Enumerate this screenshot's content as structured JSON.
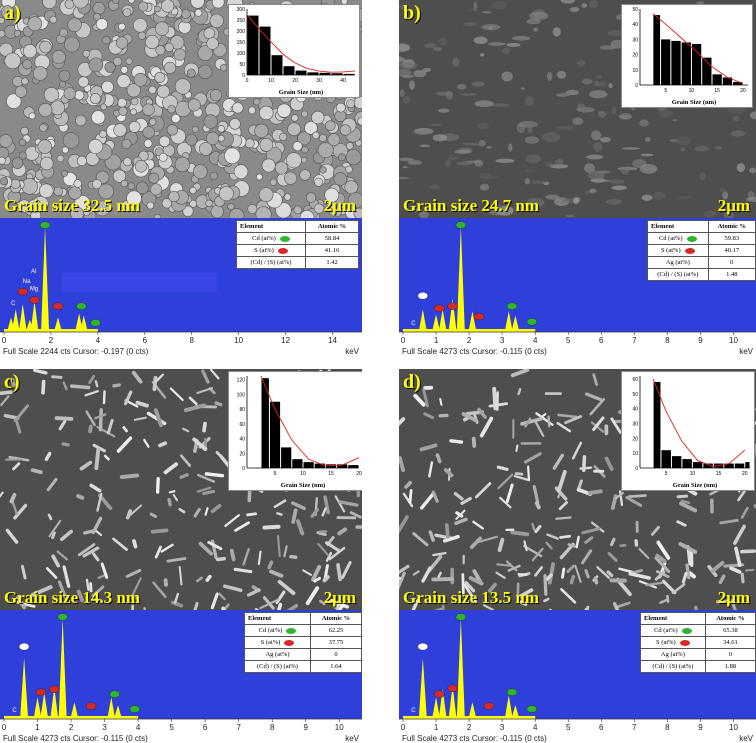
{
  "panels": [
    {
      "label": "a)",
      "grain": "Grain size 32.5 nm",
      "scale": "2μm",
      "hist": {
        "xlabel": "Grain Size (nm)",
        "xticks": [
          0,
          10,
          20,
          30,
          40
        ],
        "yticks": [
          0,
          50,
          100,
          150,
          200,
          250,
          300
        ],
        "xmax": 45,
        "ymax": 300,
        "bins": [
          [
            0,
            5,
            270
          ],
          [
            5,
            10,
            220
          ],
          [
            10,
            15,
            90
          ],
          [
            15,
            20,
            40
          ],
          [
            20,
            25,
            20
          ],
          [
            25,
            30,
            12
          ],
          [
            30,
            35,
            10
          ],
          [
            35,
            40,
            8
          ],
          [
            40,
            45,
            5
          ]
        ],
        "fit": [
          [
            0,
            275
          ],
          [
            5,
            210
          ],
          [
            10,
            150
          ],
          [
            15,
            95
          ],
          [
            20,
            55
          ],
          [
            25,
            30
          ],
          [
            30,
            18
          ],
          [
            35,
            13
          ],
          [
            40,
            14
          ],
          [
            45,
            18
          ]
        ]
      },
      "eds": {
        "footer": "Full Scale 2244 cts Cursor: -0.197  (0 cts)",
        "unit": "keV",
        "xmax": 15,
        "xticks": [
          0,
          2,
          4,
          6,
          8,
          10,
          12,
          14
        ],
        "peaks": [
          [
            0.3,
            0.12
          ],
          [
            0.5,
            0.2
          ],
          [
            0.8,
            0.25
          ],
          [
            1.1,
            0.1
          ],
          [
            1.3,
            0.28
          ],
          [
            1.75,
            1.0
          ],
          [
            2.3,
            0.12
          ],
          [
            3.2,
            0.16
          ],
          [
            3.4,
            0.14
          ]
        ],
        "markers": [
          {
            "x": 0.8,
            "y": 0.34,
            "c": "red"
          },
          {
            "x": 1.3,
            "y": 0.26,
            "c": "red"
          },
          {
            "x": 1.75,
            "y": 0.98,
            "c": "green"
          },
          {
            "x": 2.3,
            "y": 0.2,
            "c": "red"
          },
          {
            "x": 3.3,
            "y": 0.2,
            "c": "green"
          },
          {
            "x": 3.9,
            "y": 0.04,
            "c": "green"
          }
        ],
        "peaklabels": [
          {
            "x": 1.15,
            "y": 0.55,
            "t": "Al"
          },
          {
            "x": 0.8,
            "y": 0.45,
            "t": "Na"
          },
          {
            "x": 1.1,
            "y": 0.38,
            "t": "Mg"
          },
          {
            "x": 0.3,
            "y": 0.24,
            "t": "C"
          }
        ],
        "blankbar": true
      },
      "table": {
        "headers": [
          "Element",
          "Atomic %"
        ],
        "rows": [
          [
            "Cd (at%)",
            "58.84",
            "green"
          ],
          [
            "S (at%)",
            "41.16",
            "red"
          ],
          [
            "(Cd) / (S) (at%)",
            "1.42",
            ""
          ]
        ]
      }
    },
    {
      "label": "b)",
      "grain": "Grain size 24.7 nm",
      "scale": "2μm",
      "hist": {
        "xlabel": "Grain Size (nm)",
        "xticks": [
          5,
          10,
          15,
          20
        ],
        "yticks": [
          0,
          10,
          20,
          30,
          40,
          50
        ],
        "xmax": 21,
        "ymax": 50,
        "bins": [
          [
            2.5,
            4,
            46
          ],
          [
            4,
            6,
            30
          ],
          [
            6,
            8,
            29
          ],
          [
            8,
            10,
            28
          ],
          [
            10,
            12,
            27
          ],
          [
            12,
            14,
            18
          ],
          [
            14,
            16,
            7
          ],
          [
            16,
            18,
            5
          ],
          [
            18,
            20,
            2
          ]
        ],
        "fit": [
          [
            2.5,
            47
          ],
          [
            5,
            40
          ],
          [
            8,
            31
          ],
          [
            11,
            22
          ],
          [
            14,
            12
          ],
          [
            17,
            5
          ],
          [
            20,
            1
          ]
        ]
      },
      "eds": {
        "footer": "Full Scale 4273 cts Cursor: -0.115  (0 cts)",
        "unit": "keV",
        "xmax": 10.5,
        "xticks": [
          0,
          1,
          2,
          3,
          4,
          5,
          6,
          7,
          8,
          9,
          10
        ],
        "peaks": [
          [
            0.6,
            0.2
          ],
          [
            1.0,
            0.15
          ],
          [
            1.2,
            0.2
          ],
          [
            1.5,
            0.3
          ],
          [
            1.75,
            1.0
          ],
          [
            2.1,
            0.18
          ],
          [
            3.2,
            0.18
          ],
          [
            3.4,
            0.14
          ]
        ],
        "markers": [
          {
            "x": 0.6,
            "y": 0.3,
            "c": "white"
          },
          {
            "x": 1.1,
            "y": 0.18,
            "c": "red"
          },
          {
            "x": 1.5,
            "y": 0.2,
            "c": "red"
          },
          {
            "x": 1.75,
            "y": 0.98,
            "c": "green"
          },
          {
            "x": 2.3,
            "y": 0.1,
            "c": "red"
          },
          {
            "x": 3.3,
            "y": 0.2,
            "c": "green"
          },
          {
            "x": 3.9,
            "y": 0.05,
            "c": "green"
          }
        ],
        "peaklabels": [
          {
            "x": 0.25,
            "y": 0.05,
            "t": "C"
          }
        ],
        "blankbar": false
      },
      "table": {
        "headers": [
          "Element",
          "Atomic %"
        ],
        "rows": [
          [
            "Cd (at%)",
            "59.83",
            "green"
          ],
          [
            "S (at%)",
            "40.17",
            "red"
          ],
          [
            "Ag (at%)",
            "0",
            ""
          ],
          [
            "(Cd) / (S) (at%)",
            "1.48",
            ""
          ]
        ]
      }
    },
    {
      "label": "c)",
      "grain": "Grain size 14.3 nm",
      "scale": "2μm",
      "hist": {
        "xlabel": "Grain Size (nm)",
        "xticks": [
          5,
          10,
          15,
          20
        ],
        "yticks": [
          0,
          20,
          40,
          60,
          80,
          100,
          120
        ],
        "xmax": 20,
        "ymax": 125,
        "bins": [
          [
            2.5,
            4,
            122
          ],
          [
            4,
            6,
            90
          ],
          [
            6,
            8,
            28
          ],
          [
            8,
            10,
            12
          ],
          [
            10,
            12,
            8
          ],
          [
            12,
            14,
            6
          ],
          [
            14,
            16,
            5
          ],
          [
            16,
            18,
            5
          ],
          [
            18,
            20,
            4
          ]
        ],
        "fit": [
          [
            2.5,
            125
          ],
          [
            5,
            80
          ],
          [
            8,
            38
          ],
          [
            11,
            12
          ],
          [
            14,
            3
          ],
          [
            17,
            4
          ],
          [
            20,
            14
          ]
        ]
      },
      "eds": {
        "footer": "Full Scale 4273 cts Cursor: -0.115  (0 cts)",
        "unit": "keV",
        "xmax": 10.5,
        "xticks": [
          0,
          1,
          2,
          3,
          4,
          5,
          6,
          7,
          8,
          9,
          10
        ],
        "peaks": [
          [
            0.6,
            0.6
          ],
          [
            1.0,
            0.2
          ],
          [
            1.2,
            0.25
          ],
          [
            1.5,
            0.3
          ],
          [
            1.75,
            1.0
          ],
          [
            2.1,
            0.15
          ],
          [
            3.2,
            0.2
          ],
          [
            3.4,
            0.12
          ]
        ],
        "markers": [
          {
            "x": 0.6,
            "y": 0.68,
            "c": "white"
          },
          {
            "x": 1.1,
            "y": 0.22,
            "c": "red"
          },
          {
            "x": 1.5,
            "y": 0.25,
            "c": "red"
          },
          {
            "x": 1.75,
            "y": 0.98,
            "c": "green"
          },
          {
            "x": 2.6,
            "y": 0.08,
            "c": "red"
          },
          {
            "x": 3.3,
            "y": 0.2,
            "c": "green"
          },
          {
            "x": 3.9,
            "y": 0.05,
            "c": "green"
          }
        ],
        "peaklabels": [
          {
            "x": 0.25,
            "y": 0.05,
            "t": "C"
          }
        ],
        "blankbar": false
      },
      "table": {
        "headers": [
          "Element",
          "Atomic %"
        ],
        "rows": [
          [
            "Cd (at%)",
            "62.25",
            "green"
          ],
          [
            "S (at%)",
            "37.75",
            "red"
          ],
          [
            "Ag (at%)",
            "0",
            ""
          ],
          [
            "(Cd) / (S) (at%)",
            "1.64",
            ""
          ]
        ]
      }
    },
    {
      "label": "d)",
      "grain": "Grain size 13.5 nm",
      "scale": "2μm",
      "hist": {
        "xlabel": "Grain Size (nm)",
        "xticks": [
          5,
          10,
          15,
          20
        ],
        "yticks": [
          0,
          10,
          20,
          30,
          40,
          50,
          60
        ],
        "xmax": 21,
        "ymax": 62,
        "bins": [
          [
            2.5,
            4,
            58
          ],
          [
            4,
            6,
            12
          ],
          [
            6,
            8,
            8
          ],
          [
            8,
            10,
            6
          ],
          [
            10,
            12,
            4
          ],
          [
            12,
            14,
            3
          ],
          [
            14,
            16,
            3
          ],
          [
            16,
            18,
            3
          ],
          [
            18,
            20,
            3
          ],
          [
            20,
            21,
            4
          ]
        ],
        "fit": [
          [
            2.5,
            60
          ],
          [
            5,
            38
          ],
          [
            8,
            18
          ],
          [
            11,
            5
          ],
          [
            14,
            1
          ],
          [
            17,
            3
          ],
          [
            20,
            12
          ]
        ]
      },
      "eds": {
        "footer": "Full Scale 4273 cts Cursor: -0.115  (0 cts)",
        "unit": "keV",
        "xmax": 10.5,
        "xticks": [
          0,
          1,
          2,
          3,
          4,
          5,
          6,
          7,
          8,
          9,
          10
        ],
        "peaks": [
          [
            0.6,
            0.6
          ],
          [
            1.0,
            0.2
          ],
          [
            1.2,
            0.28
          ],
          [
            1.5,
            0.32
          ],
          [
            1.75,
            1.0
          ],
          [
            2.1,
            0.15
          ],
          [
            3.2,
            0.22
          ],
          [
            3.4,
            0.12
          ]
        ],
        "markers": [
          {
            "x": 0.6,
            "y": 0.68,
            "c": "white"
          },
          {
            "x": 1.1,
            "y": 0.2,
            "c": "red"
          },
          {
            "x": 1.5,
            "y": 0.26,
            "c": "red"
          },
          {
            "x": 1.75,
            "y": 0.98,
            "c": "green"
          },
          {
            "x": 2.6,
            "y": 0.08,
            "c": "red"
          },
          {
            "x": 3.3,
            "y": 0.22,
            "c": "green"
          },
          {
            "x": 3.9,
            "y": 0.05,
            "c": "green"
          }
        ],
        "peaklabels": [
          {
            "x": 0.25,
            "y": 0.05,
            "t": "C"
          }
        ],
        "blankbar": false
      },
      "table": {
        "headers": [
          "Element",
          "Atomic %"
        ],
        "rows": [
          [
            "Cd (at%)",
            "65.38",
            "green"
          ],
          [
            "S (at%)",
            "34.61",
            "red"
          ],
          [
            "Ag (at%)",
            "0",
            ""
          ],
          [
            "(Cd) / (S) (at%)",
            "1.88",
            ""
          ]
        ]
      }
    }
  ],
  "colors": {
    "eds_bg": "#2f3fd9",
    "peak": "#ffff00",
    "green": "#2db52d",
    "red": "#d42a2a",
    "accent": "#ffff00"
  }
}
